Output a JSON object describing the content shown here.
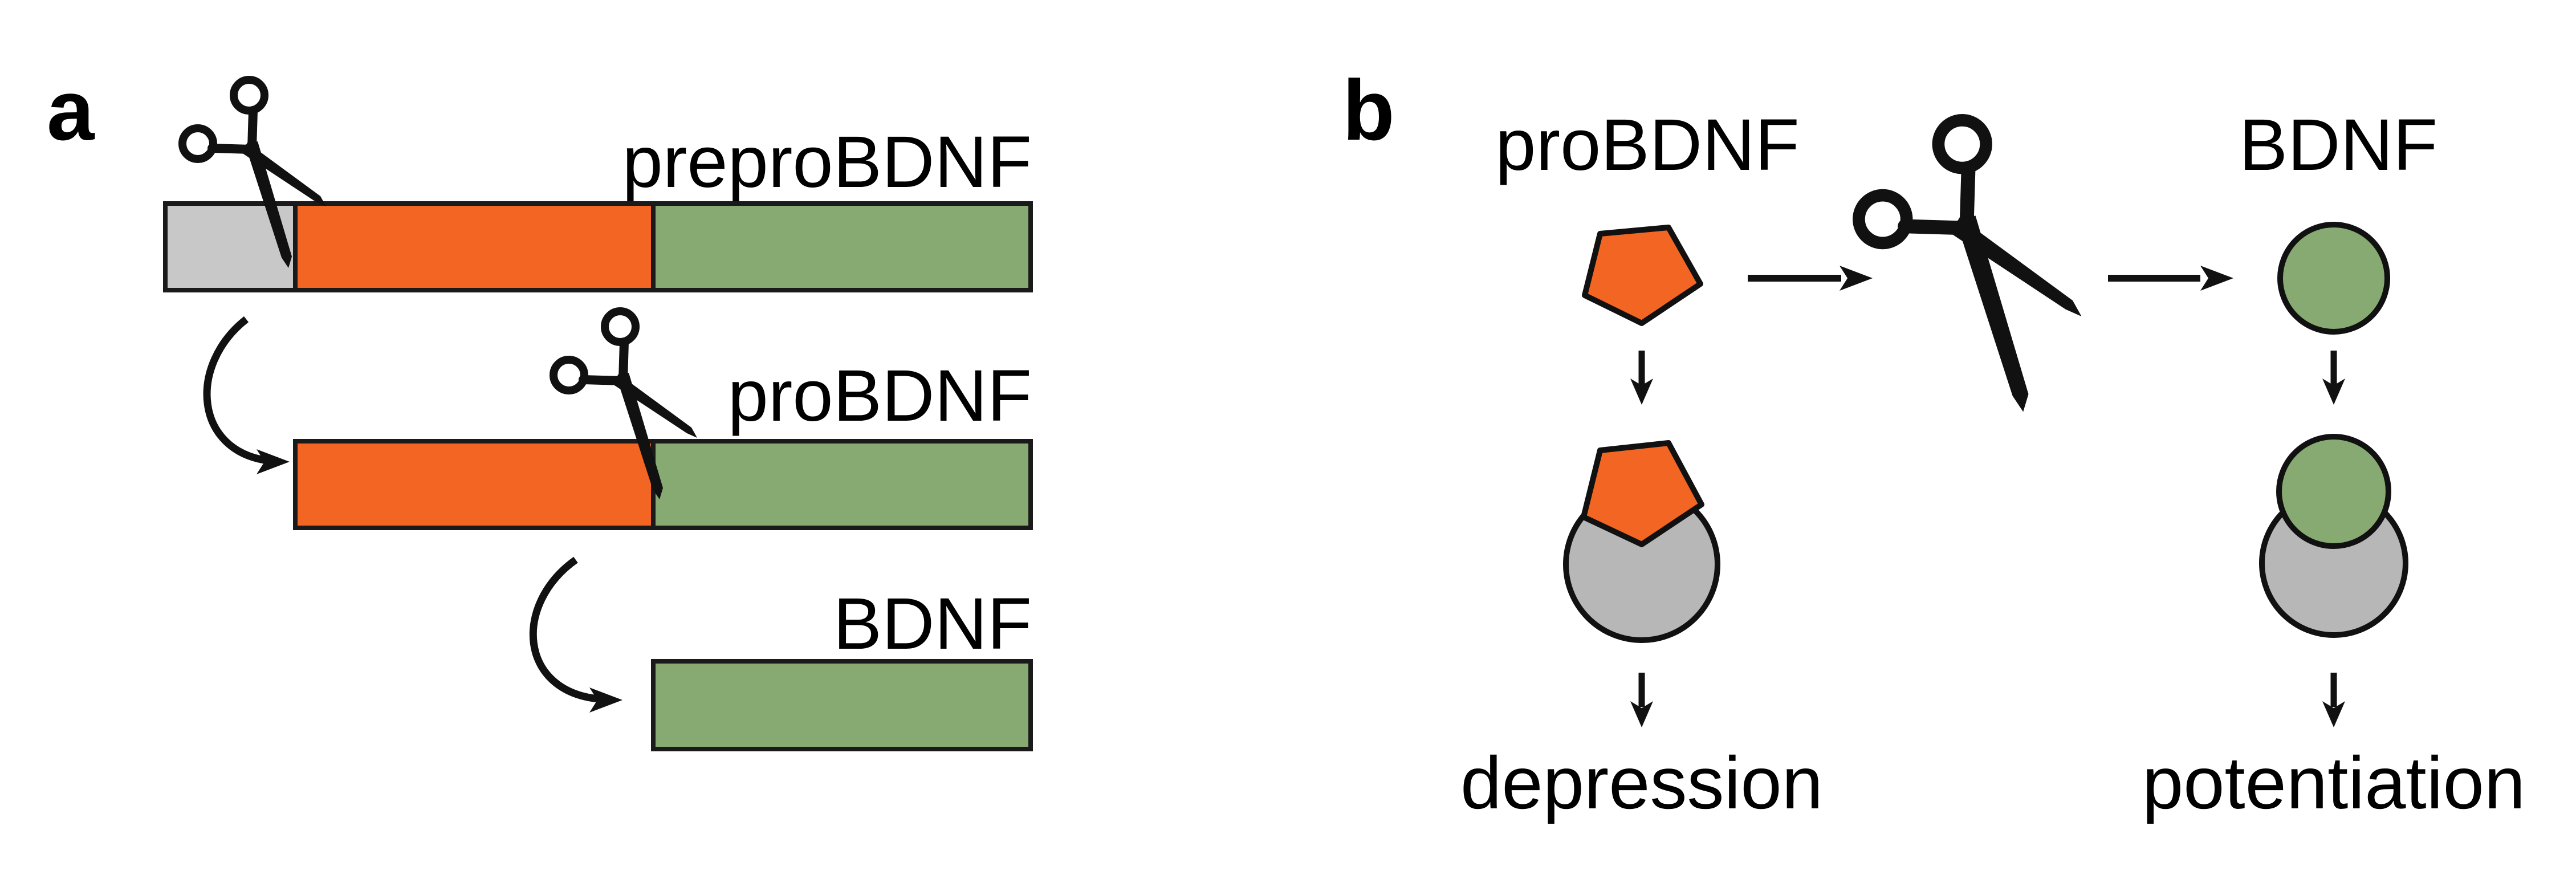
{
  "panel_a": {
    "letter": "a",
    "labels": {
      "prepro": "preproBDNF",
      "pro": "proBDNF",
      "mature": "BDNF"
    }
  },
  "panel_b": {
    "letter": "b",
    "labels": {
      "pro": "proBDNF",
      "mature": "BDNF",
      "left_outcome": "depression",
      "right_outcome": "potentiation"
    }
  },
  "colors": {
    "signal_peptide": "#c8c8c8",
    "prodomain": "#f26522",
    "mature_domain": "#87aa72",
    "receptor": "#b6b7b6",
    "outline": "#1a1a1a"
  },
  "icons": [
    "scissors-icon",
    "arrow-icon",
    "curved-arrow-icon",
    "pentagon-shape",
    "circle-shape"
  ]
}
